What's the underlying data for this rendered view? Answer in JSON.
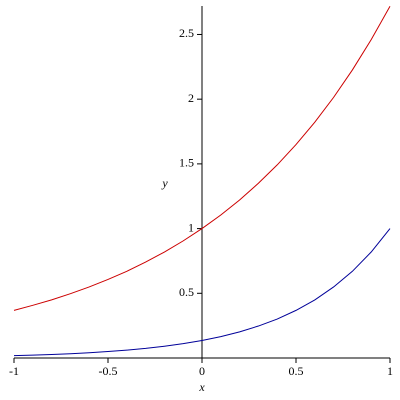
{
  "chart_data": {
    "type": "line",
    "x_label": "x",
    "y_label": "y",
    "x": [
      -1,
      -0.9,
      -0.8,
      -0.7,
      -0.6,
      -0.5,
      -0.4,
      -0.3,
      -0.2,
      -0.1,
      0,
      0.1,
      0.2,
      0.3,
      0.4,
      0.5,
      0.6,
      0.7,
      0.8,
      0.9,
      1
    ],
    "series": [
      {
        "color": "#cc0000",
        "values": [
          0.368,
          0.407,
          0.449,
          0.497,
          0.549,
          0.607,
          0.67,
          0.741,
          0.819,
          0.905,
          1,
          1.105,
          1.221,
          1.35,
          1.492,
          1.649,
          1.822,
          2.014,
          2.226,
          2.46,
          2.718
        ]
      },
      {
        "color": "#000099",
        "values": [
          0.018,
          0.022,
          0.027,
          0.033,
          0.041,
          0.05,
          0.061,
          0.074,
          0.091,
          0.111,
          0.135,
          0.165,
          0.202,
          0.247,
          0.301,
          0.368,
          0.449,
          0.549,
          0.67,
          0.819,
          1
        ]
      }
    ],
    "xlim": [
      -1,
      1
    ],
    "ylim": [
      0,
      2.72
    ],
    "xticks": [
      -1,
      -0.5,
      0,
      0.5,
      1
    ],
    "yticks": [
      0.5,
      1,
      1.5,
      2,
      2.5
    ]
  }
}
